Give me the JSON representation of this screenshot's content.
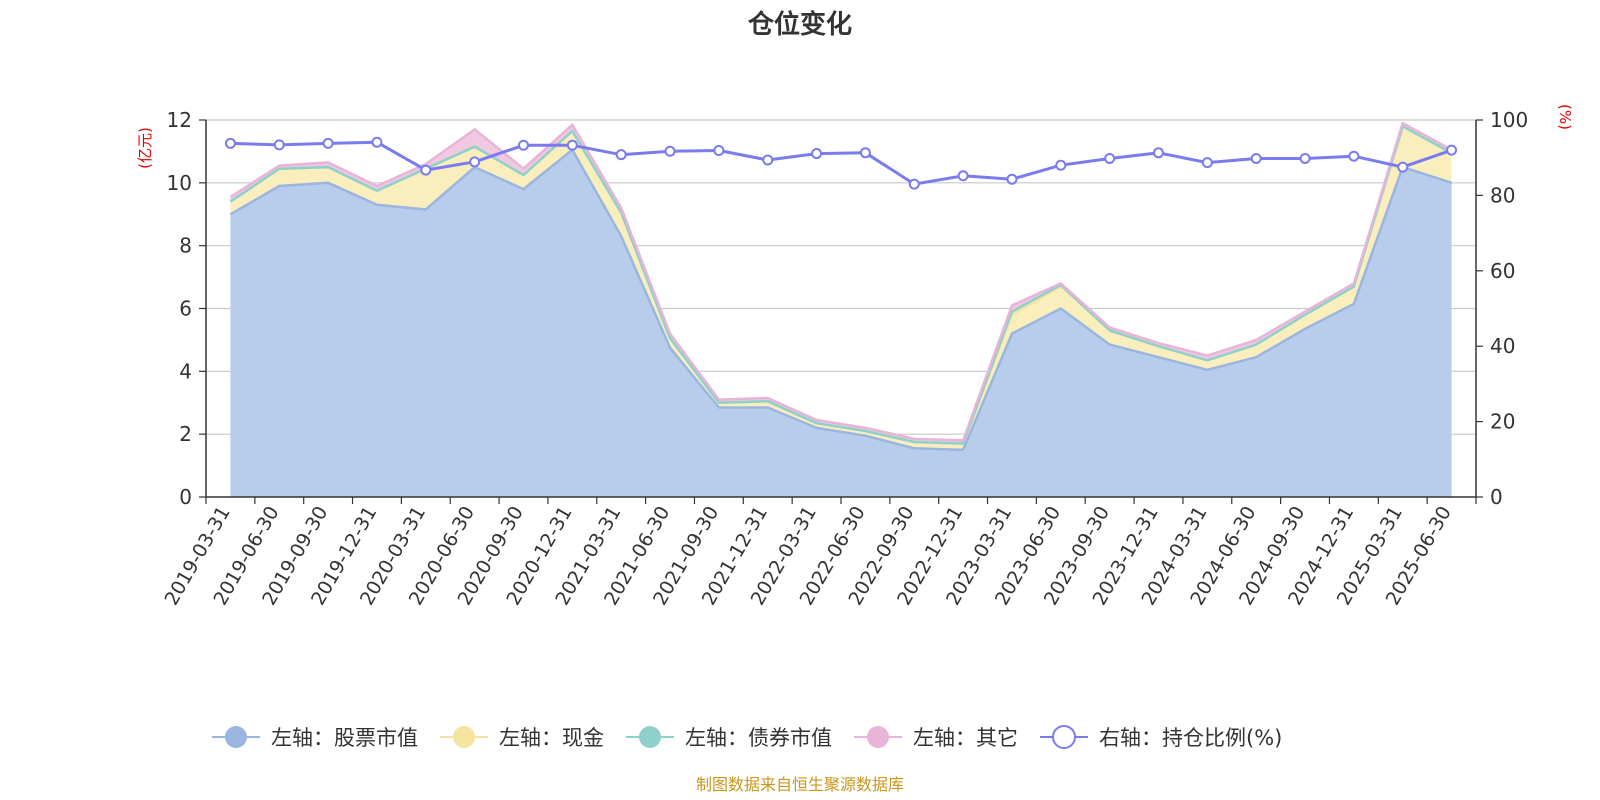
{
  "chart_data": {
    "type": "area",
    "title": "仓位变化",
    "left_axis_unit": "(亿元)",
    "right_axis_unit": "(%)",
    "ylim_left": [
      0,
      12
    ],
    "yticks_left": [
      "0",
      "2",
      "4",
      "6",
      "8",
      "10",
      "12"
    ],
    "ylim_right": [
      0,
      100
    ],
    "yticks_right": [
      "0",
      "20",
      "40",
      "60",
      "80",
      "100"
    ],
    "grid": true,
    "legend_position": "bottom",
    "categories": [
      "2019-03-31",
      "2019-06-30",
      "2019-09-30",
      "2019-12-31",
      "2020-03-31",
      "2020-06-30",
      "2020-09-30",
      "2020-12-31",
      "2021-03-31",
      "2021-06-30",
      "2021-09-30",
      "2021-12-31",
      "2022-03-31",
      "2022-06-30",
      "2022-09-30",
      "2022-12-31",
      "2023-03-31",
      "2023-06-30",
      "2023-09-30",
      "2023-12-31",
      "2024-03-31",
      "2024-06-30",
      "2024-09-30",
      "2024-12-31",
      "2025-03-31",
      "2025-06-30"
    ],
    "series": [
      {
        "name": "左轴：股票市值",
        "axis": "left",
        "kind": "stacked-area",
        "color": "#9ab6e0",
        "fill": "#b8cdeb",
        "values": [
          9.0,
          9.9,
          10.0,
          9.3,
          9.15,
          10.5,
          9.8,
          11.05,
          8.3,
          4.75,
          2.85,
          2.85,
          2.2,
          1.95,
          1.55,
          1.5,
          5.2,
          6.0,
          4.85,
          4.45,
          4.05,
          4.45,
          5.35,
          6.15,
          10.5,
          10.0
        ]
      },
      {
        "name": "左轴：现金",
        "axis": "left",
        "kind": "stacked-area",
        "color": "#f5e3a0",
        "fill": "#faeebd",
        "values": [
          0.4,
          0.55,
          0.5,
          0.45,
          1.3,
          0.65,
          0.45,
          0.6,
          0.75,
          0.3,
          0.15,
          0.2,
          0.15,
          0.15,
          0.2,
          0.2,
          0.6,
          0.7,
          0.45,
          0.35,
          0.3,
          0.4,
          0.45,
          0.55,
          1.3,
          0.95
        ]
      },
      {
        "name": "左轴：债券市值",
        "axis": "left",
        "kind": "stacked-area",
        "color": "#8ed1cc",
        "fill": "#b6e3e0",
        "values": [
          0.0,
          0.0,
          0.0,
          0.0,
          0.0,
          0.0,
          0.0,
          0.0,
          0.0,
          0.0,
          0.0,
          0.0,
          0.0,
          0.0,
          0.0,
          0.0,
          0.1,
          0.05,
          0.0,
          0.0,
          0.0,
          0.0,
          0.0,
          0.0,
          0.0,
          0.0
        ]
      },
      {
        "name": "左轴：其它",
        "axis": "left",
        "kind": "stacked-area",
        "color": "#e8b4d8",
        "fill": "#f0c8e2",
        "values": [
          0.15,
          0.1,
          0.15,
          0.15,
          0.15,
          0.55,
          0.2,
          0.2,
          0.15,
          0.15,
          0.1,
          0.1,
          0.1,
          0.1,
          0.1,
          0.1,
          0.2,
          0.05,
          0.1,
          0.1,
          0.15,
          0.15,
          0.1,
          0.1,
          0.1,
          0.1
        ]
      },
      {
        "name": "右轴：持仓比例(%)",
        "axis": "right",
        "kind": "line",
        "color": "#7b7bf0",
        "values": [
          93.8,
          93.4,
          93.8,
          94.1,
          86.7,
          88.9,
          93.3,
          93.3,
          90.8,
          91.7,
          91.9,
          89.4,
          91.1,
          91.3,
          83.0,
          85.2,
          84.3,
          88.0,
          89.8,
          91.3,
          88.7,
          89.8,
          89.8,
          90.4,
          87.5,
          92.0
        ]
      }
    ],
    "footer": "制图数据来自恒生聚源数据库"
  }
}
